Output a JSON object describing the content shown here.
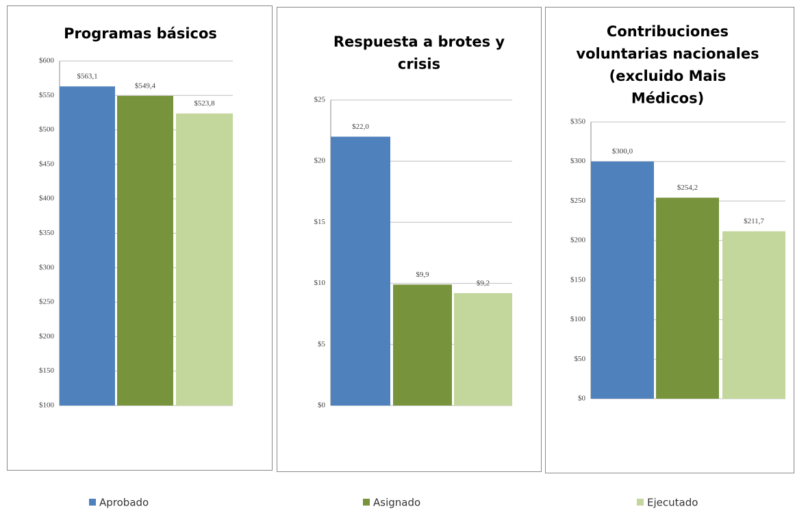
{
  "chart_data": [
    {
      "type": "bar",
      "title": [
        "Programas básicos"
      ],
      "series": [
        {
          "name": "Aprobado",
          "color": "#4f81bd",
          "values": [
            563.1
          ],
          "value_labels": [
            "$563,1"
          ]
        },
        {
          "name": "Asignado",
          "color": "#77933c",
          "values": [
            549.4
          ],
          "value_labels": [
            "$549,4"
          ]
        },
        {
          "name": "Ejecutado",
          "color": "#c3d69b",
          "values": [
            523.8
          ],
          "value_labels": [
            "$523,8"
          ]
        }
      ],
      "ylim": [
        100,
        600
      ],
      "yticks": [
        {
          "value": 100,
          "label": "$100"
        },
        {
          "value": 150,
          "label": "$150"
        },
        {
          "value": 200,
          "label": "$200"
        },
        {
          "value": 250,
          "label": "$250"
        },
        {
          "value": 300,
          "label": "$300"
        },
        {
          "value": 350,
          "label": "$350"
        },
        {
          "value": 400,
          "label": "$400"
        },
        {
          "value": 450,
          "label": "$450"
        },
        {
          "value": 500,
          "label": "$500"
        },
        {
          "value": 550,
          "label": "$550"
        },
        {
          "value": 600,
          "label": "$600"
        }
      ],
      "grid": true,
      "legend": "bottom"
    },
    {
      "type": "bar",
      "title": [
        "Respuesta a brotes y",
        "crisis"
      ],
      "series": [
        {
          "name": "Aprobado",
          "color": "#4f81bd",
          "values": [
            22.0
          ],
          "value_labels": [
            "$22,0"
          ]
        },
        {
          "name": "Asignado",
          "color": "#77933c",
          "values": [
            9.9
          ],
          "value_labels": [
            "$9,9"
          ]
        },
        {
          "name": "Ejecutado",
          "color": "#c3d69b",
          "values": [
            9.2
          ],
          "value_labels": [
            "$9,2"
          ]
        }
      ],
      "ylim": [
        0,
        25
      ],
      "yticks": [
        {
          "value": 0,
          "label": "$0"
        },
        {
          "value": 5,
          "label": "$5"
        },
        {
          "value": 10,
          "label": "$10"
        },
        {
          "value": 15,
          "label": "$15"
        },
        {
          "value": 20,
          "label": "$20"
        },
        {
          "value": 25,
          "label": "$25"
        }
      ],
      "grid": true
    },
    {
      "type": "bar",
      "title": [
        "Contribuciones",
        "voluntarias nacionales",
        "(excluido Mais",
        "Médicos)"
      ],
      "series": [
        {
          "name": "Aprobado",
          "color": "#4f81bd",
          "values": [
            300.0
          ],
          "value_labels": [
            "$300,0"
          ]
        },
        {
          "name": "Asignado",
          "color": "#77933c",
          "values": [
            254.2
          ],
          "value_labels": [
            "$254,2"
          ]
        },
        {
          "name": "Ejecutado",
          "color": "#c3d69b",
          "values": [
            211.7
          ],
          "value_labels": [
            "$211,7"
          ]
        }
      ],
      "ylim": [
        0,
        350
      ],
      "yticks": [
        {
          "value": 0,
          "label": "$0"
        },
        {
          "value": 50,
          "label": "$50"
        },
        {
          "value": 100,
          "label": "$100"
        },
        {
          "value": 150,
          "label": "$150"
        },
        {
          "value": 200,
          "label": "$200"
        },
        {
          "value": 250,
          "label": "$250"
        },
        {
          "value": 300,
          "label": "$300"
        },
        {
          "value": 350,
          "label": "$350"
        }
      ],
      "grid": true
    }
  ]
}
